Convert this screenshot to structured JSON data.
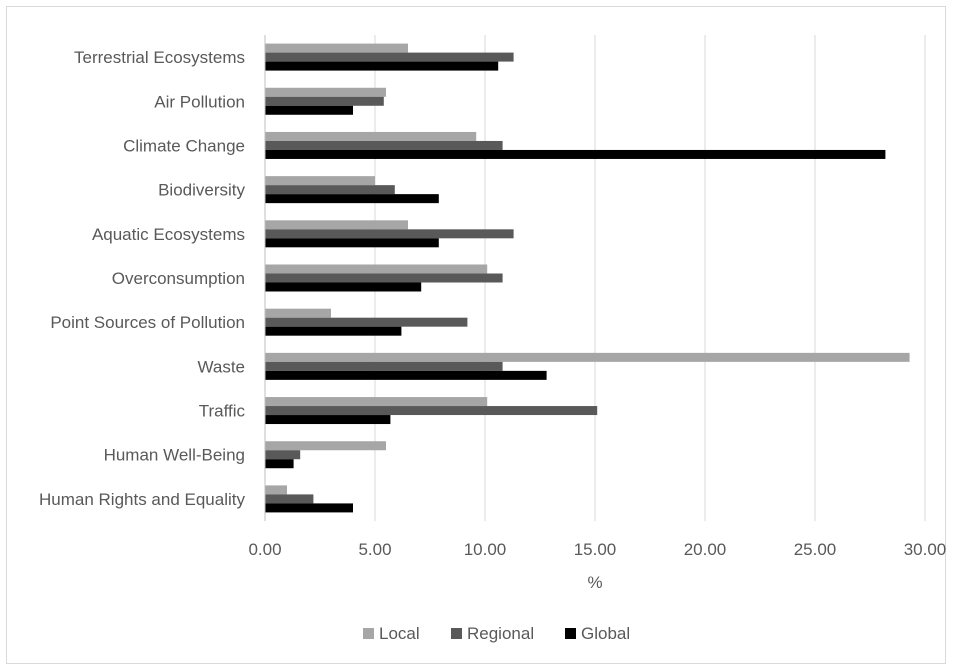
{
  "chart_data": {
    "type": "bar",
    "orientation": "horizontal",
    "categories": [
      "Terrestrial Ecosystems",
      "Air Pollution",
      "Climate Change",
      "Biodiversity",
      "Aquatic Ecosystems",
      "Overconsumption",
      "Point Sources of Pollution",
      "Waste",
      "Traffic",
      "Human Well-Being",
      "Human Rights and Equality"
    ],
    "series": [
      {
        "name": "Local",
        "color": "#a6a6a6",
        "values": [
          6.5,
          5.5,
          9.6,
          5.0,
          6.5,
          10.1,
          3.0,
          29.3,
          10.1,
          5.5,
          1.0
        ]
      },
      {
        "name": "Regional",
        "color": "#595959",
        "values": [
          11.3,
          5.4,
          10.8,
          5.9,
          11.3,
          10.8,
          9.2,
          10.8,
          15.1,
          1.6,
          2.2
        ]
      },
      {
        "name": "Global",
        "color": "#000000",
        "values": [
          10.6,
          4.0,
          28.2,
          7.9,
          7.9,
          7.1,
          6.2,
          12.8,
          5.7,
          1.3,
          4.0
        ]
      }
    ],
    "xlabel": "%",
    "xlim": [
      0,
      30
    ],
    "xticks": [
      "0.00",
      "5.00",
      "10.00",
      "15.00",
      "20.00",
      "25.00",
      "30.00"
    ],
    "grid": true,
    "legend": "bottom"
  }
}
